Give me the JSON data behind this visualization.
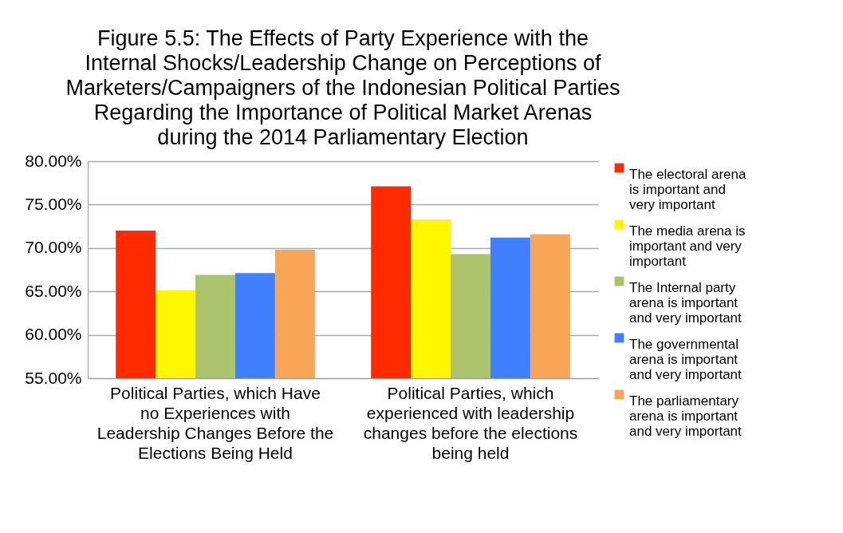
{
  "chart_data": {
    "type": "bar",
    "title": "Figure 5.5: The Effects of Party Experience with the Internal Shocks/Leadership Change on Perceptions of Marketers/Campaigners of the Indonesian Political Parties Regarding the Importance of Political Market Arenas during the 2014 Parliamentary Election",
    "categories": [
      "Political Parties, which Have no Experiences with Leadership Changes Before the Elections Being Held",
      "Political Parties, which experienced with leadership changes before the elections being held"
    ],
    "series": [
      {
        "name": "The electoral arena is important and very important",
        "color": "#ff2a00",
        "values": [
          72.0,
          77.1
        ]
      },
      {
        "name": "The media arena is important and very important",
        "color": "#fff700",
        "values": [
          65.1,
          73.3
        ]
      },
      {
        "name": "The Internal party arena is important and very important",
        "color": "#aac36c",
        "values": [
          66.9,
          69.3
        ]
      },
      {
        "name": "The governmental arena is important and very important",
        "color": "#4080ff",
        "values": [
          67.1,
          71.2
        ]
      },
      {
        "name": "The parliamentary arena is important and very important",
        "color": "#f8a656",
        "values": [
          69.8,
          71.6
        ]
      }
    ],
    "ylim": [
      55,
      80
    ],
    "yticks": [
      {
        "value": 55,
        "label": "55.00%"
      },
      {
        "value": 60,
        "label": "60.00%"
      },
      {
        "value": 65,
        "label": "65.00%"
      },
      {
        "value": 70,
        "label": "70.00%"
      },
      {
        "value": 75,
        "label": "75.00%"
      },
      {
        "value": 80,
        "label": "80.00%"
      }
    ],
    "grid": "y",
    "legend": "right"
  }
}
